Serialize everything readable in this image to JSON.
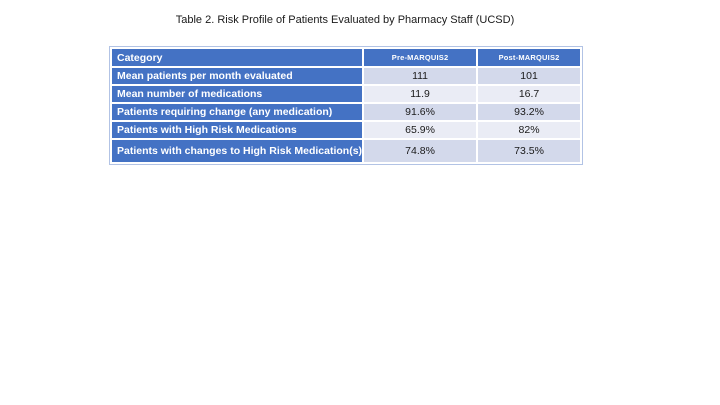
{
  "title": "Table 2. Risk Profile of Patients Evaluated by Pharmacy Staff (UCSD)",
  "table": {
    "columns": [
      "Category",
      "Pre-MARQUIS2",
      "Post-MARQUIS2"
    ],
    "rows": [
      {
        "label": "Mean patients per month evaluated",
        "pre": "111",
        "post": "101"
      },
      {
        "label": "Mean number of medications",
        "pre": "11.9",
        "post": "16.7"
      },
      {
        "label": "Patients requiring change (any medication)",
        "pre": "91.6%",
        "post": "93.2%"
      },
      {
        "label": "Patients with High Risk Medications",
        "pre": "65.9%",
        "post": "82%"
      },
      {
        "label": "Patients with changes to High Risk Medication(s)",
        "pre": "74.8%",
        "post": "73.5%"
      }
    ]
  },
  "colors": {
    "header_blue": "#4472C4",
    "band_dark": "#D3D9EB",
    "band_light": "#EAECF5",
    "outer_border": "#B2C3E5",
    "title_color": "#1a1a1a",
    "value_color": "#1a1a1a"
  }
}
